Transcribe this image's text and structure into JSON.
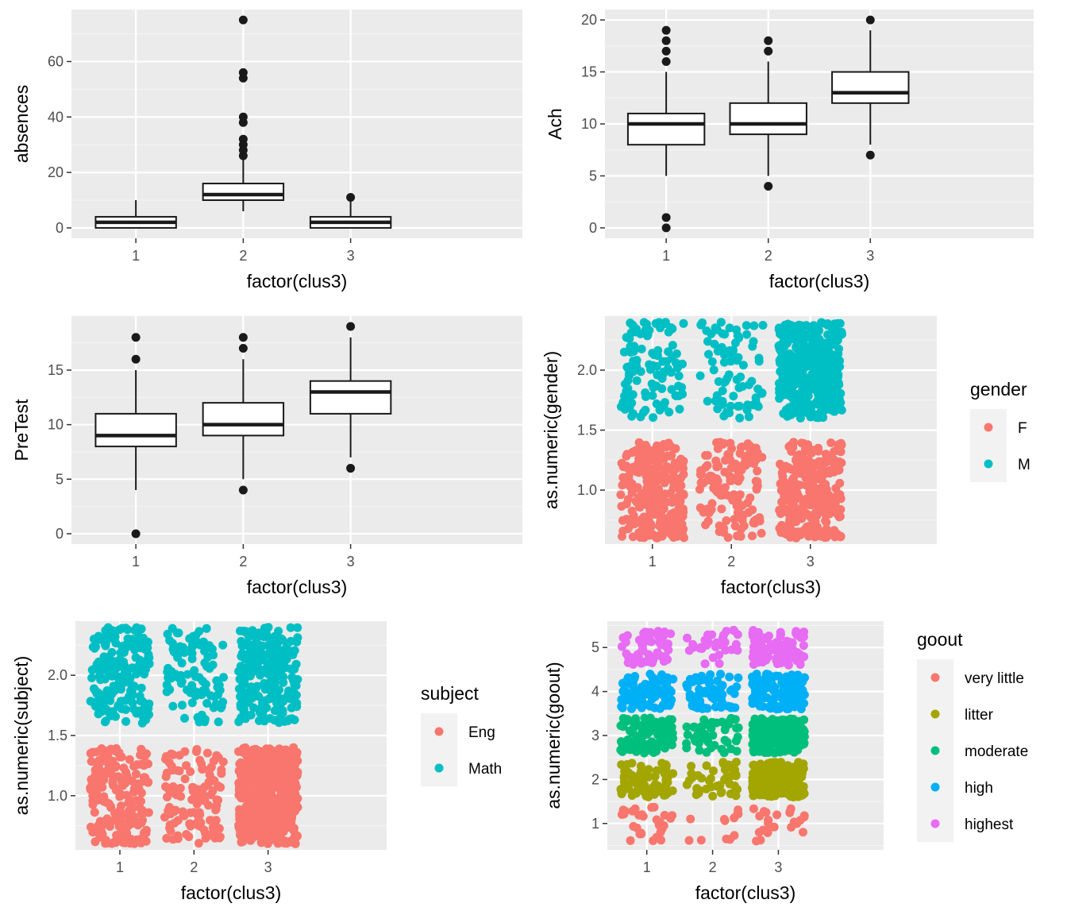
{
  "colors": {
    "panel_bg": "#EBEBEB",
    "grid_major": "#FFFFFF",
    "grid_minor": "#F5F5F5",
    "box_line": "#1A1A1A",
    "box_fill": "#FFFFFF",
    "outlier": "#1A1A1A",
    "legend_key_bg": "#F2F2F2"
  },
  "chart_data": [
    {
      "id": "absences",
      "type": "box",
      "xlabel": "factor(clus3)",
      "ylabel": "absences",
      "categories": [
        "1",
        "2",
        "3"
      ],
      "yticks": [
        0,
        20,
        40,
        60
      ],
      "ylim": [
        -3.75,
        78.75
      ],
      "boxes": [
        {
          "category": "1",
          "lower_whisker": 0,
          "q1": 0,
          "median": 2,
          "q3": 4,
          "upper_whisker": 10,
          "outliers": []
        },
        {
          "category": "2",
          "lower_whisker": 6,
          "q1": 10,
          "median": 12,
          "q3": 16,
          "upper_whisker": 25,
          "outliers": [
            26,
            28,
            30,
            32,
            38,
            40,
            54,
            56,
            75
          ]
        },
        {
          "category": "3",
          "lower_whisker": 0,
          "q1": 0,
          "median": 2,
          "q3": 4,
          "upper_whisker": 10,
          "outliers": [
            11
          ]
        }
      ]
    },
    {
      "id": "ach",
      "type": "box",
      "xlabel": "factor(clus3)",
      "ylabel": "Ach",
      "categories": [
        "1",
        "2",
        "3"
      ],
      "yticks": [
        0,
        5,
        10,
        15,
        20
      ],
      "ylim": [
        -1,
        21
      ],
      "boxes": [
        {
          "category": "1",
          "lower_whisker": 5,
          "q1": 8,
          "median": 10,
          "q3": 11,
          "upper_whisker": 15,
          "outliers": [
            0,
            1,
            16,
            17,
            18,
            19
          ]
        },
        {
          "category": "2",
          "lower_whisker": 5,
          "q1": 9,
          "median": 10,
          "q3": 12,
          "upper_whisker": 16,
          "outliers": [
            4,
            17,
            18
          ]
        },
        {
          "category": "3",
          "lower_whisker": 8,
          "q1": 12,
          "median": 13,
          "q3": 15,
          "upper_whisker": 19,
          "outliers": [
            7,
            20
          ]
        }
      ]
    },
    {
      "id": "pretest",
      "type": "box",
      "xlabel": "factor(clus3)",
      "ylabel": "PreTest",
      "categories": [
        "1",
        "2",
        "3"
      ],
      "yticks": [
        0,
        5,
        10,
        15
      ],
      "ylim": [
        -0.95,
        19.95
      ],
      "boxes": [
        {
          "category": "1",
          "lower_whisker": 4,
          "q1": 8,
          "median": 9,
          "q3": 11,
          "upper_whisker": 15,
          "outliers": [
            0,
            16,
            18
          ]
        },
        {
          "category": "2",
          "lower_whisker": 5,
          "q1": 9,
          "median": 10,
          "q3": 12,
          "upper_whisker": 16,
          "outliers": [
            4,
            17,
            18
          ]
        },
        {
          "category": "3",
          "lower_whisker": 7,
          "q1": 11,
          "median": 13,
          "q3": 14,
          "upper_whisker": 18,
          "outliers": [
            6,
            19
          ]
        }
      ]
    },
    {
      "id": "gender",
      "type": "scatter",
      "xlabel": "factor(clus3)",
      "ylabel": "as.numeric(gender)",
      "categories": [
        "1",
        "2",
        "3"
      ],
      "yticks": [
        1.0,
        1.5,
        2.0
      ],
      "ytick_labels": [
        "1.0",
        "1.5",
        "2.0"
      ],
      "ylim": [
        0.55,
        2.45
      ],
      "jitter": {
        "x": 0.4,
        "y": 0.4
      },
      "legend_title": "gender",
      "groups": [
        {
          "name": "F",
          "y": 1,
          "color": "#F8766D",
          "counts": [
            260,
            130,
            260
          ]
        },
        {
          "name": "M",
          "y": 2,
          "color": "#00BFC4",
          "counts": [
            110,
            80,
            400
          ]
        }
      ]
    },
    {
      "id": "subject",
      "type": "scatter",
      "xlabel": "factor(clus3)",
      "ylabel": "as.numeric(subject)",
      "categories": [
        "1",
        "2",
        "3"
      ],
      "yticks": [
        1.0,
        1.5,
        2.0
      ],
      "ytick_labels": [
        "1.0",
        "1.5",
        "2.0"
      ],
      "ylim": [
        0.55,
        2.45
      ],
      "jitter": {
        "x": 0.4,
        "y": 0.4
      },
      "legend_title": "subject",
      "groups": [
        {
          "name": "Eng",
          "y": 1,
          "color": "#F8766D",
          "counts": [
            200,
            120,
            560
          ]
        },
        {
          "name": "Math",
          "y": 2,
          "color": "#00BFC4",
          "counts": [
            180,
            100,
            240
          ]
        }
      ]
    },
    {
      "id": "goout",
      "type": "scatter",
      "xlabel": "factor(clus3)",
      "ylabel": "as.numeric(goout)",
      "categories": [
        "1",
        "2",
        "3"
      ],
      "yticks": [
        1,
        2,
        3,
        4,
        5
      ],
      "ytick_labels": [
        "1",
        "2",
        "3",
        "4",
        "5"
      ],
      "ylim": [
        0.4,
        5.6
      ],
      "jitter": {
        "x": 0.4,
        "y": 0.4
      },
      "legend_title": "goout",
      "groups": [
        {
          "name": "very little",
          "y": 1,
          "color": "#F8766D",
          "counts": [
            30,
            12,
            25
          ]
        },
        {
          "name": "litter",
          "y": 2,
          "color": "#A3A500",
          "counts": [
            80,
            45,
            220
          ]
        },
        {
          "name": "moderate",
          "y": 3,
          "color": "#00BF7D",
          "counts": [
            95,
            50,
            230
          ]
        },
        {
          "name": "high",
          "y": 4,
          "color": "#00B0F6",
          "counts": [
            85,
            60,
            120
          ]
        },
        {
          "name": "highest",
          "y": 5,
          "color": "#E76BF3",
          "counts": [
            55,
            30,
            80
          ]
        }
      ]
    }
  ]
}
